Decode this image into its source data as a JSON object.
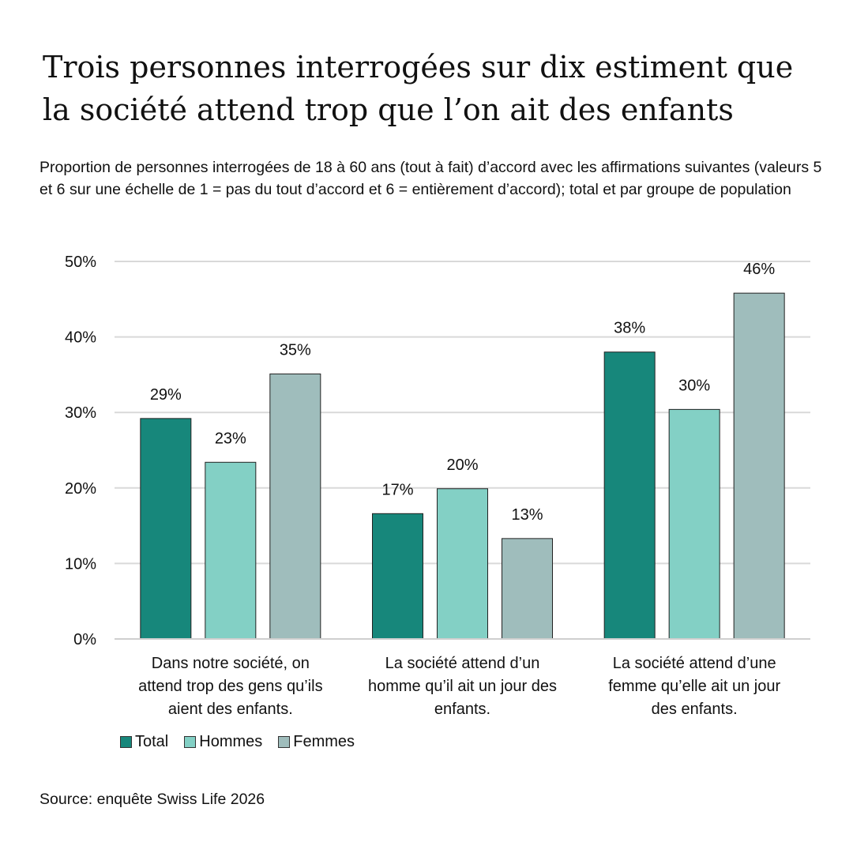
{
  "title": "Trois personnes interrogées sur dix estiment que la société attend trop que l’on ait des enfants",
  "subtitle": "Proportion de personnes interrogées de 18 à 60 ans (tout à fait) d’accord avec les affirmations suivantes (valeurs 5 et 6 sur une échelle de 1 = pas du tout d’accord et 6 = entièrement d’accord); total et par groupe de population",
  "source": "Source: enquête Swiss Life 2026",
  "chart_data": {
    "type": "bar",
    "categories": [
      [
        "Dans notre société, on",
        "attend trop des gens qu’ils",
        "aient des enfants."
      ],
      [
        "La société attend d’un",
        "homme qu’il ait un jour des",
        "enfants."
      ],
      [
        "La société attend d’une",
        "femme qu’elle ait un jour",
        "des enfants."
      ]
    ],
    "series": [
      {
        "name": "Total",
        "color": "#17877b",
        "values": [
          29.2,
          16.6,
          38.0
        ],
        "labels": [
          "29%",
          "17%",
          "38%"
        ]
      },
      {
        "name": "Hommes",
        "color": "#83d0c5",
        "values": [
          23.4,
          19.9,
          30.4
        ],
        "labels": [
          "23%",
          "20%",
          "30%"
        ]
      },
      {
        "name": "Femmes",
        "color": "#9fbdbc",
        "values": [
          35.1,
          13.3,
          45.8
        ],
        "labels": [
          "35%",
          "13%",
          "46%"
        ]
      }
    ],
    "ylim": [
      0,
      50
    ],
    "yticks": [
      "0%",
      "10%",
      "20%",
      "30%",
      "40%",
      "50%"
    ],
    "ytick_values": [
      0,
      10,
      20,
      30,
      40,
      50
    ],
    "grid": true,
    "legend_position": "bottom-left"
  }
}
